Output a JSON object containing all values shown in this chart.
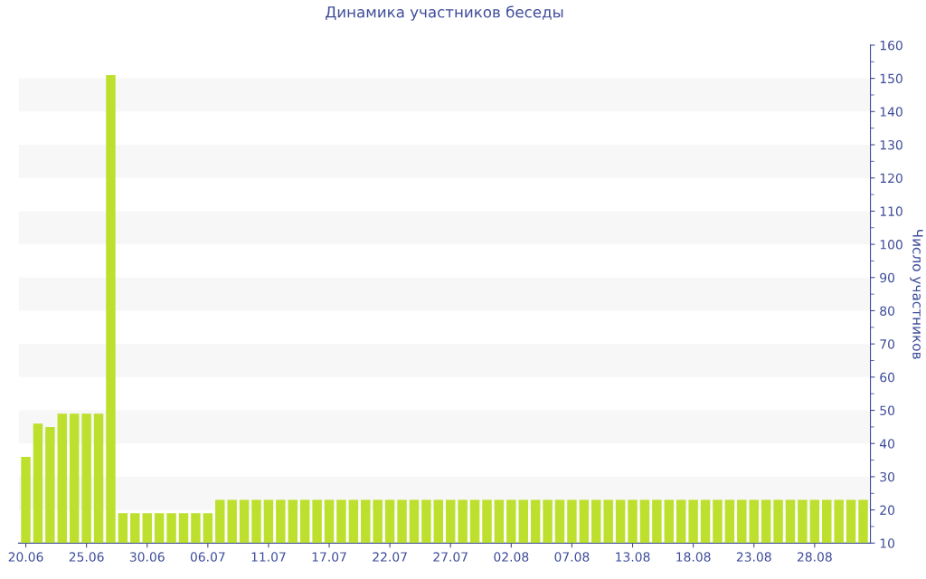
{
  "chart_data": {
    "type": "bar",
    "title": "Динамика участников беседы",
    "y2label": "Число участников",
    "categories": [
      "20.06",
      null,
      null,
      null,
      null,
      "25.06",
      null,
      null,
      null,
      null,
      "30.06",
      null,
      null,
      null,
      null,
      "06.07",
      null,
      null,
      null,
      null,
      "11.07",
      null,
      null,
      null,
      null,
      "17.07",
      null,
      null,
      null,
      null,
      "22.07",
      null,
      null,
      null,
      null,
      "27.07",
      null,
      null,
      null,
      null,
      "02.08",
      null,
      null,
      null,
      null,
      "07.08",
      null,
      null,
      null,
      null,
      "13.08",
      null,
      null,
      null,
      null,
      "18.08",
      null,
      null,
      null,
      null,
      "23.08",
      null,
      null,
      null,
      null,
      "28.08",
      null,
      null,
      null,
      null
    ],
    "series": [
      {
        "color": "#bde02e",
        "axis": "y2",
        "values": [
          36,
          46,
          45,
          49,
          49,
          49,
          49,
          151,
          19,
          19,
          19,
          19,
          19,
          19,
          19,
          19,
          23,
          23,
          23,
          23,
          23,
          23,
          23,
          23,
          23,
          23,
          23,
          23,
          23,
          23,
          23,
          23,
          23,
          23,
          23,
          23,
          23,
          23,
          23,
          23,
          23,
          23,
          23,
          23,
          23,
          23,
          23,
          23,
          23,
          23,
          23,
          23,
          23,
          23,
          23,
          23,
          23,
          23,
          23,
          23,
          23,
          23,
          23,
          23,
          23,
          23,
          23,
          23,
          23,
          23
        ]
      }
    ],
    "y2lim": [
      10,
      160
    ],
    "y2ticks": [
      10,
      20,
      30,
      40,
      50,
      60,
      70,
      80,
      90,
      100,
      110,
      120,
      130,
      140,
      150,
      160
    ],
    "bands": [
      {
        "axis": "y2",
        "from": 20,
        "to": 30,
        "color": "#f7f7f7"
      },
      {
        "axis": "y2",
        "from": 40,
        "to": 50,
        "color": "#f7f7f7"
      },
      {
        "axis": "y2",
        "from": 60,
        "to": 70,
        "color": "#f7f7f7"
      },
      {
        "axis": "y2",
        "from": 80,
        "to": 90,
        "color": "#f7f7f7"
      },
      {
        "axis": "y2",
        "from": 100,
        "to": 110,
        "color": "#f7f7f7"
      },
      {
        "axis": "y2",
        "from": 120,
        "to": 130,
        "color": "#f7f7f7"
      },
      {
        "axis": "y2",
        "from": 140,
        "to": 150,
        "color": "#f7f7f7"
      }
    ],
    "legend": false
  }
}
